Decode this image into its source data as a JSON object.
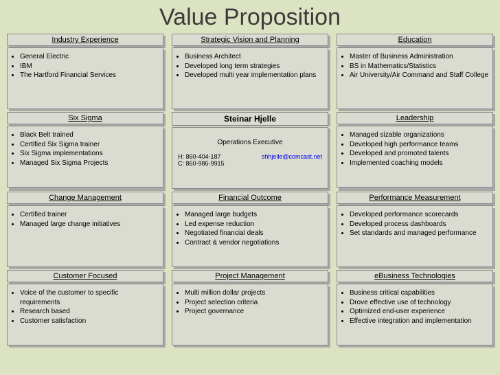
{
  "title": "Value Proposition",
  "center": {
    "name": "Steinar Hjelle",
    "role": "Operations Executive",
    "phone1": "H: 860-404-187",
    "phone2": "C: 860-986-9915",
    "email": "shhjelle@comcast.net"
  },
  "cards": {
    "industry": {
      "title": "Industry Experience",
      "items": [
        "General Electric",
        "IBM",
        "The Hartford Financial Services"
      ]
    },
    "strategic": {
      "title": "Strategic Vision and Planning",
      "items": [
        "Business Architect",
        "Developed long term strategies",
        "Developed multi year implementation plans"
      ]
    },
    "education": {
      "title": "Education",
      "items": [
        "Master of Business Administration",
        "BS in Mathematics/Statistics",
        "Air University/Air Command and Staff College"
      ]
    },
    "sixsigma": {
      "title": "Six Sigma",
      "items": [
        "Black Belt trained",
        "Certified Six Sigma trainer",
        "Six Sigma implementations",
        "Managed Six Sigma Projects"
      ]
    },
    "leadership": {
      "title": "Leadership",
      "items": [
        "Managed sizable organizations",
        "Developed high performance teams",
        "Developed and promoted talents",
        "Implemented coaching models"
      ]
    },
    "change": {
      "title": "Change Management",
      "items": [
        "Certified trainer",
        "Managed large change initiatives"
      ]
    },
    "financial": {
      "title": "Financial Outcome",
      "items": [
        "Managed large budgets",
        "Led expense reduction",
        "Negotiated financial deals",
        "Contract & vendor negotiations"
      ]
    },
    "performance": {
      "title": "Performance Measurement",
      "items": [
        "Developed performance scorecards",
        "Developed process dashboards",
        "Set standards and managed performance"
      ]
    },
    "customer": {
      "title": "Customer Focused",
      "items": [
        "Voice of the customer to specific requirements",
        "Research based",
        "Customer satisfaction"
      ]
    },
    "project": {
      "title": "Project Management",
      "items": [
        "Multi million dollar projects",
        "Project selection criteria",
        "Project governance"
      ]
    },
    "ebusiness": {
      "title": "eBusiness Technologies",
      "items": [
        "Business critical capabilities",
        "Drove effective use of technology",
        "Optimized end-user experience",
        "Effective integration and implementation"
      ]
    }
  }
}
